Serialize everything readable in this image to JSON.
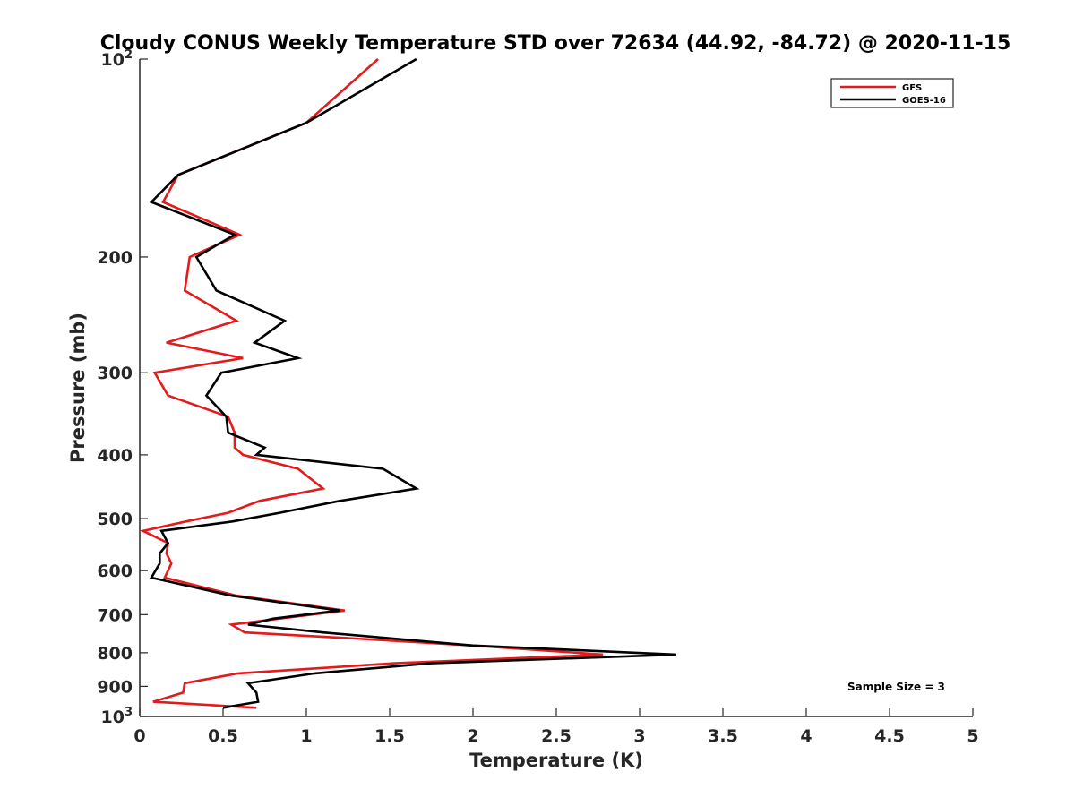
{
  "chart_data": {
    "type": "line",
    "title": "Cloudy CONUS Weekly Temperature STD over 72634 (44.92, -84.72) @ 2020-11-15",
    "xlabel": "Temperature (K)",
    "ylabel": "Pressure (mb)",
    "xlim": [
      0,
      5
    ],
    "ylim": [
      100,
      1000
    ],
    "y_scale": "log",
    "y_reversed": true,
    "grid": false,
    "legend_position": "top-right",
    "x_ticks": [
      {
        "value": 0,
        "label": "0"
      },
      {
        "value": 0.5,
        "label": "0.5"
      },
      {
        "value": 1,
        "label": "1"
      },
      {
        "value": 1.5,
        "label": "1.5"
      },
      {
        "value": 2,
        "label": "2"
      },
      {
        "value": 2.5,
        "label": "2.5"
      },
      {
        "value": 3,
        "label": "3"
      },
      {
        "value": 3.5,
        "label": "3.5"
      },
      {
        "value": 4,
        "label": "4"
      },
      {
        "value": 4.5,
        "label": "4.5"
      },
      {
        "value": 5,
        "label": "5"
      }
    ],
    "y_ticks": [
      {
        "value": 100,
        "base": "10",
        "exp": "2"
      },
      {
        "value": 200,
        "label": "200"
      },
      {
        "value": 300,
        "label": "300"
      },
      {
        "value": 400,
        "label": "400"
      },
      {
        "value": 500,
        "label": "500"
      },
      {
        "value": 600,
        "label": "600"
      },
      {
        "value": 700,
        "label": "700"
      },
      {
        "value": 800,
        "label": "800"
      },
      {
        "value": 900,
        "label": "900"
      },
      {
        "value": 1000,
        "base": "10",
        "exp": "3"
      }
    ],
    "annotation": "Sample Size = 3",
    "series": [
      {
        "name": "GFS",
        "color": "#e41a1c",
        "points": [
          [
            1.43,
            100
          ],
          [
            1.0,
            125
          ],
          [
            0.23,
            150
          ],
          [
            0.14,
            165
          ],
          [
            0.6,
            185
          ],
          [
            0.3,
            200
          ],
          [
            0.27,
            225
          ],
          [
            0.58,
            250
          ],
          [
            0.16,
            270
          ],
          [
            0.62,
            285
          ],
          [
            0.09,
            300
          ],
          [
            0.17,
            325
          ],
          [
            0.53,
            350
          ],
          [
            0.57,
            370
          ],
          [
            0.57,
            390
          ],
          [
            0.62,
            400
          ],
          [
            0.95,
            420
          ],
          [
            1.1,
            450
          ],
          [
            0.72,
            470
          ],
          [
            0.53,
            490
          ],
          [
            0.28,
            505
          ],
          [
            0.02,
            522
          ],
          [
            0.17,
            545
          ],
          [
            0.16,
            565
          ],
          [
            0.19,
            585
          ],
          [
            0.15,
            615
          ],
          [
            0.58,
            655
          ],
          [
            1.23,
            690
          ],
          [
            0.55,
            725
          ],
          [
            0.63,
            745
          ],
          [
            1.25,
            760
          ],
          [
            2.0,
            780
          ],
          [
            2.78,
            805
          ],
          [
            1.53,
            830
          ],
          [
            0.59,
            860
          ],
          [
            0.27,
            890
          ],
          [
            0.26,
            920
          ],
          [
            0.08,
            950
          ],
          [
            0.7,
            970
          ]
        ]
      },
      {
        "name": "GOES-16",
        "color": "#000000",
        "points": [
          [
            1.66,
            100
          ],
          [
            1.0,
            125
          ],
          [
            0.23,
            150
          ],
          [
            0.07,
            165
          ],
          [
            0.57,
            185
          ],
          [
            0.34,
            200
          ],
          [
            0.46,
            225
          ],
          [
            0.87,
            250
          ],
          [
            0.69,
            270
          ],
          [
            0.95,
            285
          ],
          [
            0.49,
            300
          ],
          [
            0.4,
            325
          ],
          [
            0.52,
            350
          ],
          [
            0.53,
            370
          ],
          [
            0.75,
            390
          ],
          [
            0.7,
            400
          ],
          [
            1.46,
            420
          ],
          [
            1.66,
            450
          ],
          [
            1.2,
            470
          ],
          [
            0.84,
            490
          ],
          [
            0.56,
            505
          ],
          [
            0.13,
            522
          ],
          [
            0.17,
            545
          ],
          [
            0.12,
            565
          ],
          [
            0.12,
            585
          ],
          [
            0.07,
            615
          ],
          [
            0.55,
            655
          ],
          [
            1.2,
            690
          ],
          [
            0.8,
            710
          ],
          [
            0.65,
            725
          ],
          [
            1.1,
            745
          ],
          [
            2.0,
            780
          ],
          [
            3.22,
            805
          ],
          [
            1.75,
            830
          ],
          [
            1.05,
            860
          ],
          [
            0.65,
            890
          ],
          [
            0.7,
            920
          ],
          [
            0.71,
            950
          ],
          [
            0.5,
            970
          ]
        ]
      }
    ]
  }
}
